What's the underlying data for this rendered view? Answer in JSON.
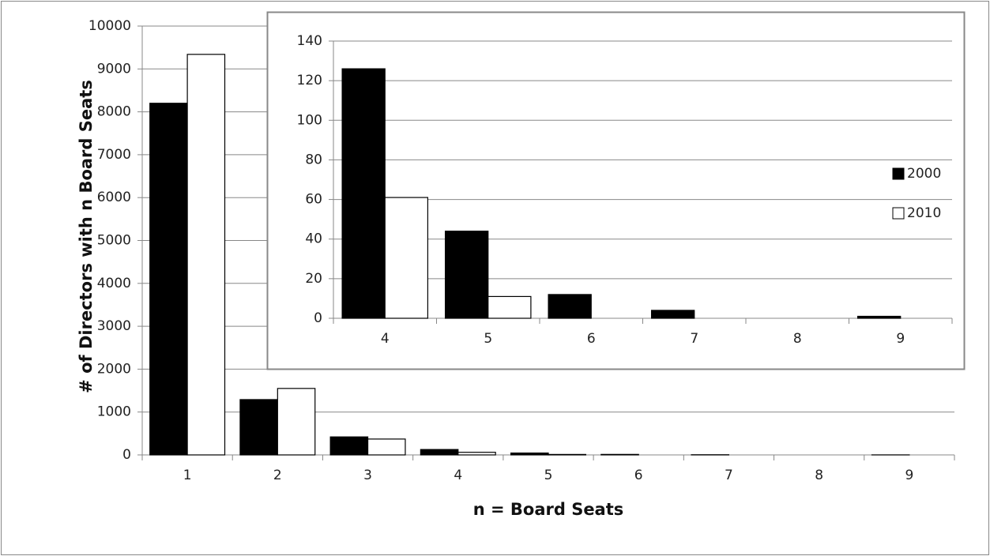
{
  "chart_data": [
    {
      "type": "bar",
      "x_label": "n = Board Seats",
      "y_label": "# of Directors with n Board Seats",
      "categories": [
        "1",
        "2",
        "3",
        "4",
        "5",
        "6",
        "7",
        "8",
        "9"
      ],
      "series": [
        {
          "color": "#000000",
          "values": [
            8200,
            1290,
            420,
            126,
            44,
            12,
            4,
            0,
            1
          ]
        },
        {
          "color": "#ffffff",
          "values": [
            9340,
            1550,
            370,
            61,
            11,
            0,
            0,
            0,
            0
          ]
        }
      ],
      "ylim": [
        0,
        10000
      ],
      "yticks": [
        0,
        1000,
        2000,
        3000,
        4000,
        5000,
        6000,
        7000,
        8000,
        9000,
        10000
      ],
      "grid": true
    },
    {
      "type": "bar",
      "categories": [
        "4",
        "5",
        "6",
        "7",
        "8",
        "9"
      ],
      "series": [
        {
          "name": "2000",
          "color": "#000000",
          "values": [
            126,
            44,
            12,
            4,
            0,
            1
          ]
        },
        {
          "name": "2010",
          "color": "#ffffff",
          "values": [
            61,
            11,
            0,
            0,
            0,
            0
          ]
        }
      ],
      "ylim": [
        0,
        140
      ],
      "yticks": [
        0,
        20,
        40,
        60,
        80,
        100,
        120,
        140
      ],
      "grid": true,
      "legend": "right"
    }
  ]
}
